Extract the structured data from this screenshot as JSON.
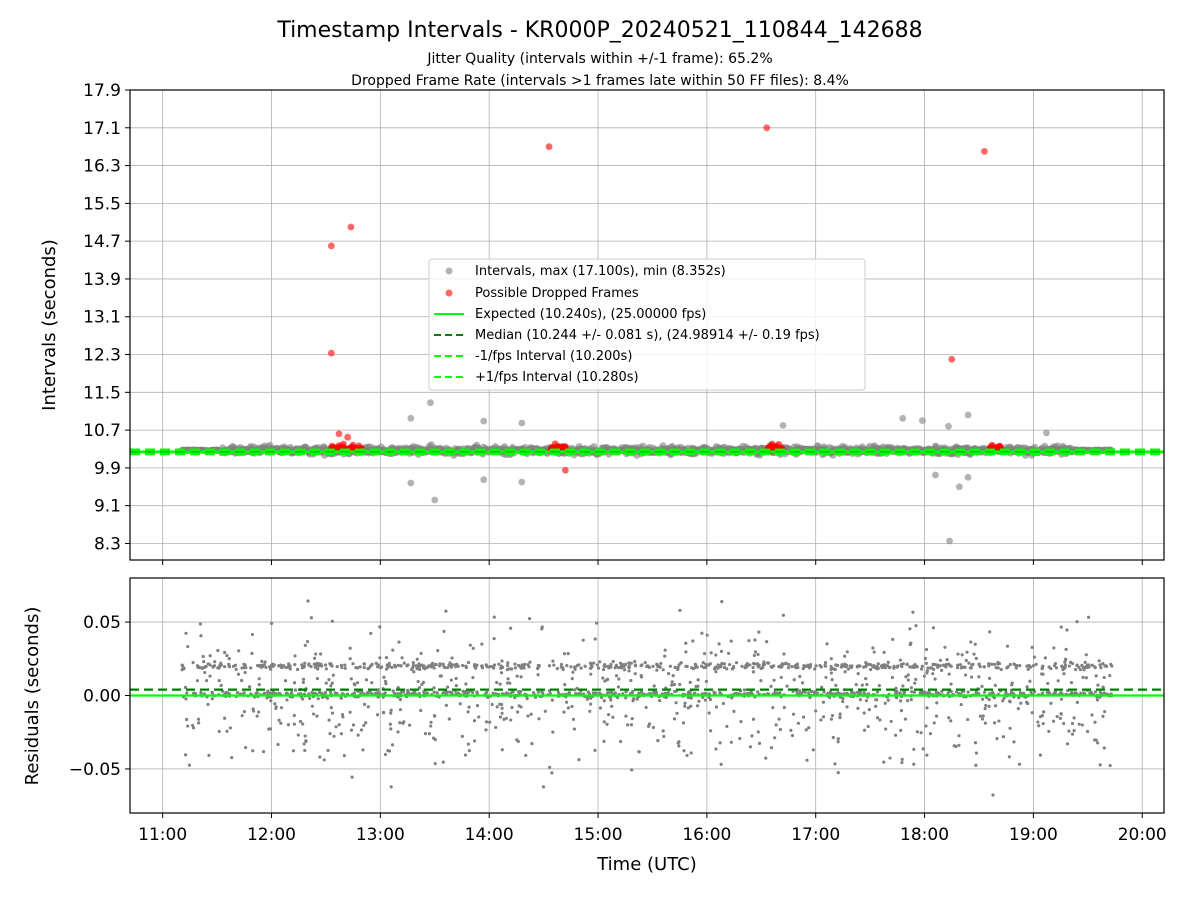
{
  "chart_data": [
    {
      "type": "scatter",
      "title": "Timestamp Intervals - KR000P_20240521_110844_142688",
      "subtitle_lines": [
        "Jitter Quality (intervals within +/-1 frame): 65.2%",
        "Dropped Frame Rate (intervals >1 frames late within 50 FF files): 8.4%"
      ],
      "ylabel": "Intervals (seconds)",
      "xlim": [
        10.7,
        20.2
      ],
      "ylim": [
        7.95,
        17.9
      ],
      "yticks": [
        "17.9",
        "17.1",
        "16.3",
        "15.5",
        "14.7",
        "13.9",
        "13.1",
        "12.3",
        "11.5",
        "10.7",
        "9.9",
        "9.1",
        "8.3"
      ],
      "grid": true,
      "legend_position": "center",
      "series": [
        {
          "name": "Intervals, max (17.100s), min (8.352s)",
          "color": "#808080",
          "band_center": 10.24,
          "band_start": 11.17,
          "band_end": 19.72,
          "outliers": [
            [
              13.28,
              10.95
            ],
            [
              13.46,
              11.28
            ],
            [
              13.5,
              9.22
            ],
            [
              13.28,
              9.58
            ],
            [
              13.95,
              10.89
            ],
            [
              14.3,
              10.85
            ],
            [
              13.95,
              9.65
            ],
            [
              14.3,
              9.6
            ],
            [
              16.7,
              10.8
            ],
            [
              17.8,
              10.95
            ],
            [
              17.98,
              10.9
            ],
            [
              18.22,
              10.78
            ],
            [
              18.4,
              11.02
            ],
            [
              18.1,
              9.75
            ],
            [
              18.32,
              9.5
            ],
            [
              18.4,
              9.7
            ],
            [
              18.23,
              8.352
            ],
            [
              19.12,
              10.64
            ]
          ]
        },
        {
          "name": "Possible Dropped Frames",
          "color": "#ff0000",
          "clusters": [
            [
              12.55,
              12.85
            ],
            [
              14.55,
              14.7
            ],
            [
              16.55,
              16.7
            ],
            [
              18.6,
              18.7
            ]
          ],
          "points": [
            [
              12.55,
              14.6
            ],
            [
              12.55,
              12.33
            ],
            [
              12.73,
              15.0
            ],
            [
              14.55,
              16.7
            ],
            [
              16.55,
              17.1
            ],
            [
              18.55,
              16.6
            ],
            [
              18.25,
              12.2
            ],
            [
              12.62,
              10.62
            ],
            [
              12.7,
              10.55
            ],
            [
              14.7,
              9.85
            ]
          ]
        },
        {
          "name": "Expected (10.240s), (25.00000 fps)",
          "value": 10.24,
          "color": "#00ff00",
          "style": "solid"
        },
        {
          "name": "Median (10.244 +/- 0.081 s), (24.98914 +/- 0.19 fps)",
          "value": 10.244,
          "color": "#008000",
          "style": "dashed"
        },
        {
          "name": "-1/fps Interval (10.200s)",
          "value": 10.2,
          "color": "#00ff00",
          "style": "dashed"
        },
        {
          "name": "+1/fps Interval (10.280s)",
          "value": 10.28,
          "color": "#00ff00",
          "style": "dashed"
        }
      ]
    },
    {
      "type": "scatter",
      "xlabel": "Time (UTC)",
      "ylabel": "Residuals (seconds)",
      "xlim": [
        10.7,
        20.2
      ],
      "ylim": [
        -0.08,
        0.08
      ],
      "xticks": [
        "11:00",
        "12:00",
        "13:00",
        "14:00",
        "15:00",
        "16:00",
        "17:00",
        "18:00",
        "19:00",
        "20:00"
      ],
      "yticks": [
        "0.05",
        "0.00",
        "−0.05"
      ],
      "grid": true,
      "series": [
        {
          "name": "Residuals",
          "color": "#808080",
          "start": 11.17,
          "end": 19.72
        },
        {
          "name": "Expected",
          "value": 0.0,
          "color": "#00ff00",
          "style": "solid"
        },
        {
          "name": "Median",
          "value": 0.004,
          "color": "#008000",
          "style": "dashed"
        }
      ]
    }
  ]
}
